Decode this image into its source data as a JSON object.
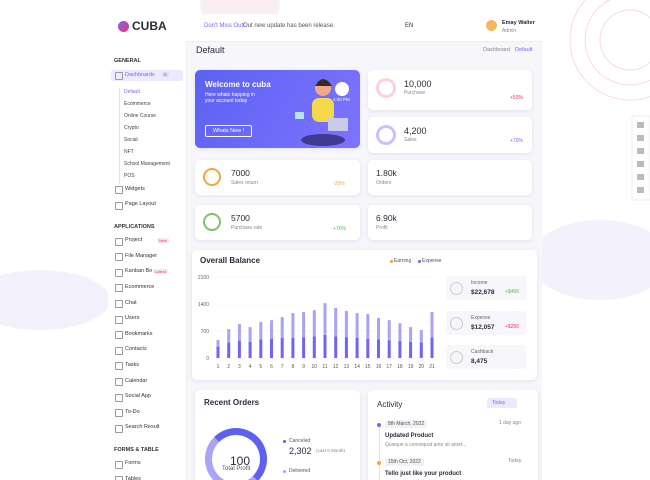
{
  "brand": "CUBA",
  "header": {
    "notice_highlight": "Don't Miss Out!",
    "notice": "Out new update has been release.",
    "language": "EN",
    "user": {
      "name": "Emay Walter",
      "role": "Admin"
    }
  },
  "page": {
    "title": "Default",
    "breadcrumb": [
      "Dashboard",
      "Default"
    ]
  },
  "sidebar": [
    {
      "title": "GENERAL",
      "items": [
        {
          "label": "Dashboards",
          "badge": "8",
          "submenu": [
            "Default",
            "Ecommerce",
            "Online Course",
            "Crypto",
            "Social",
            "NFT",
            "School Management",
            "POS"
          ]
        },
        {
          "label": "Widgets"
        },
        {
          "label": "Page Layout"
        }
      ]
    },
    {
      "title": "APPLICATIONS",
      "items": [
        {
          "label": "Project",
          "tag": "New"
        },
        {
          "label": "File Manager"
        },
        {
          "label": "Kanban Bo",
          "tag": "Latest"
        },
        {
          "label": "Ecommerce"
        },
        {
          "label": "Chat"
        },
        {
          "label": "Users"
        },
        {
          "label": "Bookmarks"
        },
        {
          "label": "Contacts"
        },
        {
          "label": "Tasks"
        },
        {
          "label": "Calendar"
        },
        {
          "label": "Social App"
        },
        {
          "label": "To-Do"
        },
        {
          "label": "Search Result"
        }
      ]
    },
    {
      "title": "FORMS & TABLE",
      "items": [
        {
          "label": "Forms"
        },
        {
          "label": "Tables"
        }
      ]
    }
  ],
  "welcome": {
    "title": "Welcome to cuba",
    "text": "Here whats happing in your account today",
    "button": "Whats New !",
    "time": "4:00 PM"
  },
  "stats": [
    {
      "value": "10,000",
      "label": "Purchase",
      "change": "+50%"
    },
    {
      "value": "4,200",
      "label": "Sales",
      "change": "+70%"
    }
  ],
  "mini": [
    {
      "value": "7000",
      "label": "Sales return",
      "change": "-20%"
    },
    {
      "value": "1.80k",
      "label": "Orders"
    },
    {
      "value": "5700",
      "label": "Purchase rate",
      "change": "+70%"
    },
    {
      "value": "6.90k",
      "label": "Profit"
    }
  ],
  "chart_data": {
    "type": "bar",
    "title": "Overall Balance",
    "stacked": true,
    "categories": [
      "1",
      "2",
      "3",
      "4",
      "5",
      "6",
      "7",
      "8",
      "9",
      "10",
      "11",
      "12",
      "13",
      "14",
      "15",
      "16",
      "17",
      "18",
      "19",
      "20",
      "21"
    ],
    "series": [
      {
        "name": "Earning",
        "color": "#7064f5",
        "marker_color": "#f39c3a",
        "values": [
          300,
          400,
          450,
          420,
          480,
          500,
          520,
          520,
          540,
          560,
          600,
          560,
          540,
          520,
          500,
          480,
          460,
          440,
          420,
          400,
          540
        ]
      },
      {
        "name": "Expense",
        "color": "#aaa3f2",
        "marker_color": "#7064f5",
        "values": [
          170,
          350,
          430,
          380,
          450,
          480,
          540,
          645,
          650,
          680,
          820,
          740,
          680,
          645,
          640,
          560,
          520,
          460,
          380,
          325,
          650
        ]
      }
    ],
    "ylim": [
      0,
      2100
    ],
    "yticks": [
      0,
      700,
      1400,
      2100
    ]
  },
  "summary": [
    {
      "label": "Income",
      "value": "$22,678",
      "change": "+$456"
    },
    {
      "label": "Expense",
      "value": "$12,057",
      "change": "+$256"
    },
    {
      "label": "Cashback",
      "value": "8,475"
    }
  ],
  "orders": {
    "title": "Recent Orders",
    "center_value": "100",
    "center_label": "Total Profit",
    "items": [
      {
        "label": "Canceled",
        "value": "2,302",
        "note": "(Last 6 Month)"
      },
      {
        "label": "Delivered"
      }
    ]
  },
  "activity": {
    "title": "Activity",
    "filter": "Today",
    "items": [
      {
        "date": "8th March, 2022",
        "ago": "1 day ago",
        "title": "Updated Product",
        "text": "Quisque a consequat ante sit amet..."
      },
      {
        "date": "15th Oct, 2022",
        "ago": "Today",
        "title": "Tello just like your product"
      }
    ]
  }
}
